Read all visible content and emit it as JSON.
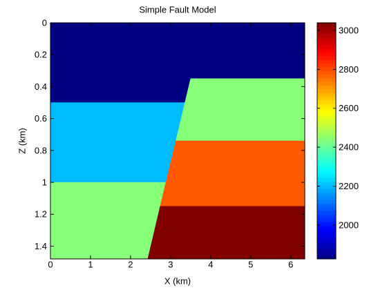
{
  "chart_data": {
    "type": "image",
    "title": "Simple Fault Model",
    "x_label": "X (km)",
    "y_label": "Z (km)",
    "colormap": "jet",
    "xlim": [
      0,
      6.35
    ],
    "ylim": [
      0,
      1.48
    ],
    "y_reversed": true,
    "xticks": [
      0,
      1,
      2,
      3,
      4,
      5,
      6
    ],
    "yticks": [
      0,
      0.2,
      0.4,
      0.6,
      0.8,
      1,
      1.2,
      1.4
    ],
    "clim": [
      1826,
      3039
    ],
    "cticks": [
      2000,
      2200,
      2400,
      2600,
      2800,
      3000
    ],
    "regions": [
      {
        "value": 1826,
        "x": [
          0,
          6.35,
          6.35,
          3.5,
          3.36,
          0
        ],
        "z": [
          0,
          0,
          0.35,
          0.35,
          0.5,
          0.5
        ]
      },
      {
        "value": 2200,
        "x": [
          0,
          3.36,
          2.88,
          0
        ],
        "z": [
          0.5,
          0.5,
          1.0,
          1.0
        ]
      },
      {
        "value": 2440,
        "x": [
          0,
          2.88,
          2.43,
          0
        ],
        "z": [
          1.0,
          1.0,
          1.48,
          1.48
        ]
      },
      {
        "value": 2440,
        "x": [
          3.5,
          6.35,
          6.35,
          3.13
        ],
        "z": [
          0.35,
          0.35,
          0.74,
          0.74
        ]
      },
      {
        "value": 2780,
        "x": [
          3.13,
          6.35,
          6.35,
          2.74
        ],
        "z": [
          0.74,
          0.74,
          1.15,
          1.15
        ]
      },
      {
        "value": 3039,
        "x": [
          2.74,
          6.35,
          6.35,
          2.43
        ],
        "z": [
          1.15,
          1.15,
          1.48,
          1.48
        ]
      }
    ]
  }
}
